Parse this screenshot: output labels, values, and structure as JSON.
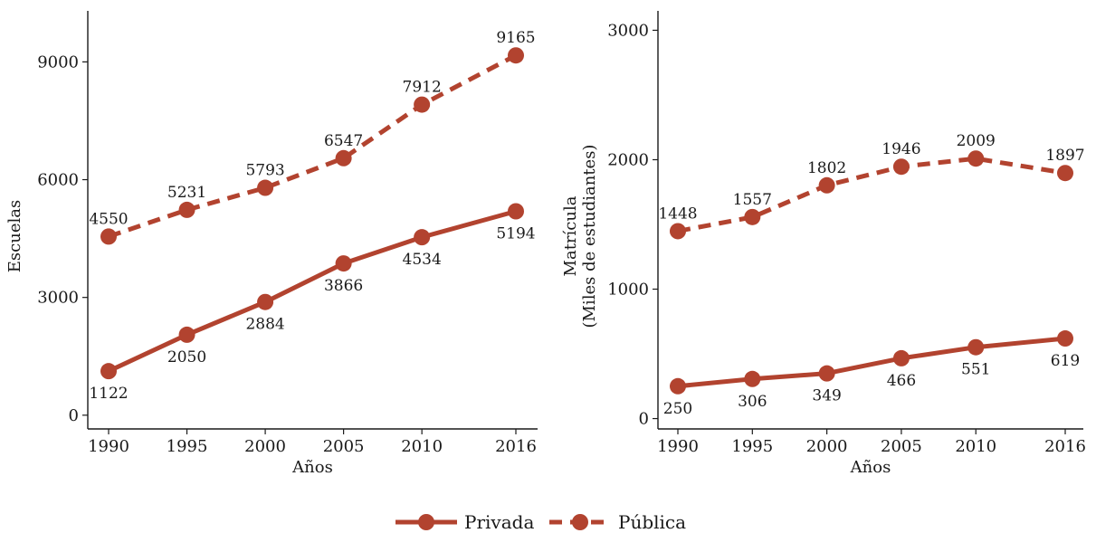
{
  "legend": {
    "position": "bottom",
    "items": [
      {
        "label": "Privada",
        "style": "solid"
      },
      {
        "label": "Pública",
        "style": "dashed"
      }
    ]
  },
  "colors": {
    "line": "#b2432f",
    "axis": "#1a1a1a",
    "text": "#1a1a1a"
  },
  "chart_data": [
    {
      "type": "line",
      "title": "",
      "xlabel": "Años",
      "ylabel": "Escuelas",
      "ylabel_lines": [
        "Escuelas"
      ],
      "categories": [
        "1990",
        "1995",
        "2000",
        "2005",
        "2010",
        "2016"
      ],
      "x": [
        1990,
        1995,
        2000,
        2005,
        2010,
        2016
      ],
      "ylim": [
        -350,
        10300
      ],
      "yticks": [
        0,
        3000,
        6000,
        9000
      ],
      "grid": false,
      "series": [
        {
          "name": "Privada",
          "style": "solid",
          "values": [
            1122,
            2050,
            2884,
            3866,
            4534,
            5194
          ],
          "label_pos": [
            "below",
            "below",
            "below",
            "below",
            "below",
            "below"
          ]
        },
        {
          "name": "Pública",
          "style": "dashed",
          "values": [
            4550,
            5231,
            5793,
            6547,
            7912,
            9165
          ],
          "label_pos": [
            "above",
            "above",
            "above",
            "above",
            "above",
            "above"
          ]
        }
      ]
    },
    {
      "type": "line",
      "title": "",
      "xlabel": "Años",
      "ylabel": "Matrícula (Miles de estudiantes)",
      "ylabel_lines": [
        "Matrícula",
        "(Miles de estudiantes)"
      ],
      "categories": [
        "1990",
        "1995",
        "2000",
        "2005",
        "2010",
        "2016"
      ],
      "x": [
        1990,
        1995,
        2000,
        2005,
        2010,
        2016
      ],
      "ylim": [
        -80,
        3150
      ],
      "yticks": [
        0,
        1000,
        2000,
        3000
      ],
      "grid": false,
      "series": [
        {
          "name": "Privada",
          "style": "solid",
          "values": [
            250,
            306,
            349,
            466,
            551,
            619
          ],
          "label_pos": [
            "below",
            "below",
            "below",
            "below",
            "below",
            "below"
          ]
        },
        {
          "name": "Pública",
          "style": "dashed",
          "values": [
            1448,
            1557,
            1802,
            1946,
            2009,
            1897
          ],
          "label_pos": [
            "above",
            "above",
            "above",
            "above",
            "above",
            "above"
          ]
        }
      ]
    }
  ]
}
